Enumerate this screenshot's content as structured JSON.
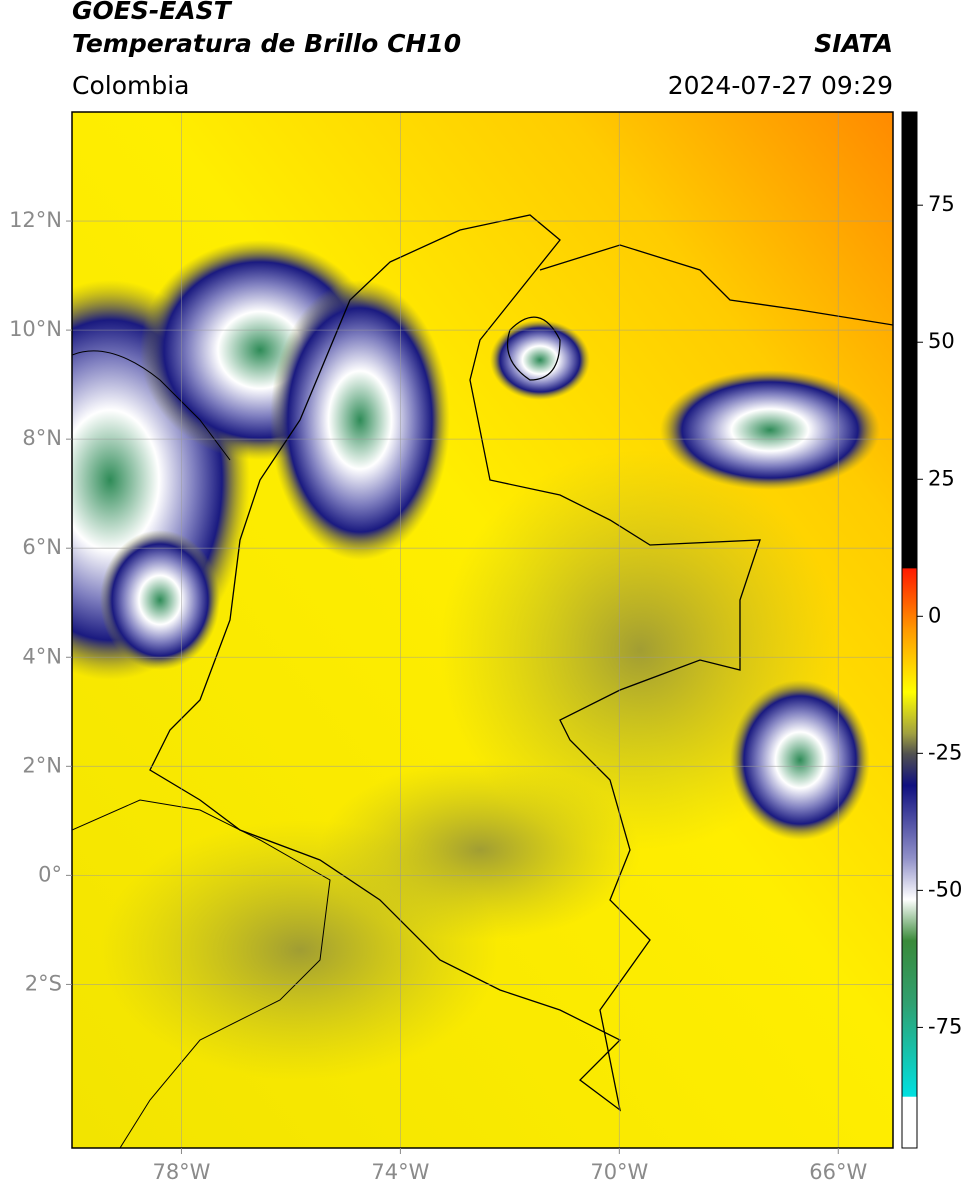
{
  "header": {
    "title": "GOES-EAST",
    "subtitle": "Temperatura de Brillo CH10",
    "source": "SIATA",
    "region": "Colombia",
    "datetime": "2024-07-27 09:29"
  },
  "map": {
    "xlim": [
      -80,
      -65
    ],
    "ylim": [
      -5,
      14
    ],
    "xticks": [
      {
        "value": -78,
        "label": "78°W"
      },
      {
        "value": -74,
        "label": "74°W"
      },
      {
        "value": -70,
        "label": "70°W"
      },
      {
        "value": -66,
        "label": "66°W"
      }
    ],
    "yticks": [
      {
        "value": 12,
        "label": "12°N"
      },
      {
        "value": 10,
        "label": "10°N"
      },
      {
        "value": 8,
        "label": "8°N"
      },
      {
        "value": 6,
        "label": "6°N"
      },
      {
        "value": 4,
        "label": "4°N"
      },
      {
        "value": 2,
        "label": "2°N"
      },
      {
        "value": 0,
        "label": "0°"
      },
      {
        "value": -2,
        "label": "2°S"
      }
    ],
    "grid": true
  },
  "colorbar": {
    "lim": [
      -97,
      92
    ],
    "ticks": [
      75,
      50,
      25,
      0,
      -25,
      -50,
      -75
    ]
  }
}
